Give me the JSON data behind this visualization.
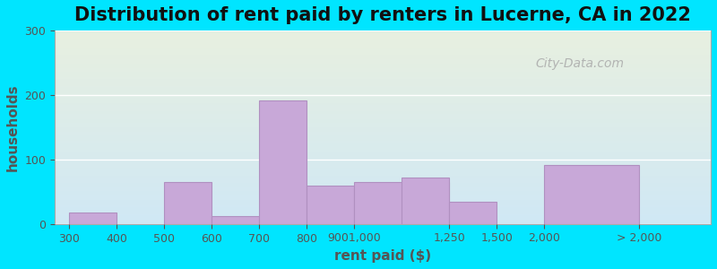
{
  "title": "Distribution of rent paid by renters in Lucerne, CA in 2022",
  "xlabel": "rent paid ($)",
  "ylabel": "households",
  "bar_color": "#c8a8d8",
  "bar_edge_color": "#b090c0",
  "background_outer": "#00e5ff",
  "background_inner_top": "#e8f0e0",
  "background_inner_bottom": "#d0e8f5",
  "ylim": [
    0,
    300
  ],
  "yticks": [
    0,
    100,
    200,
    300
  ],
  "title_fontsize": 15,
  "axis_label_fontsize": 11,
  "tick_fontsize": 9,
  "watermark": "City-Data.com",
  "xtick_labels": [
    "300",
    "400",
    "500",
    "600",
    "700",
    "800",
    "9001,000",
    "1,250",
    "1,500",
    "2,000",
    "> 2,000"
  ],
  "bar_lefts": [
    0,
    1,
    2,
    3,
    4,
    5,
    6,
    7,
    8,
    9,
    10
  ],
  "bar_widths": [
    1,
    1,
    1,
    1,
    1,
    1,
    2,
    1,
    1,
    1,
    2
  ],
  "bar_heights": [
    18,
    0,
    65,
    12,
    192,
    60,
    65,
    72,
    35,
    0,
    92
  ]
}
